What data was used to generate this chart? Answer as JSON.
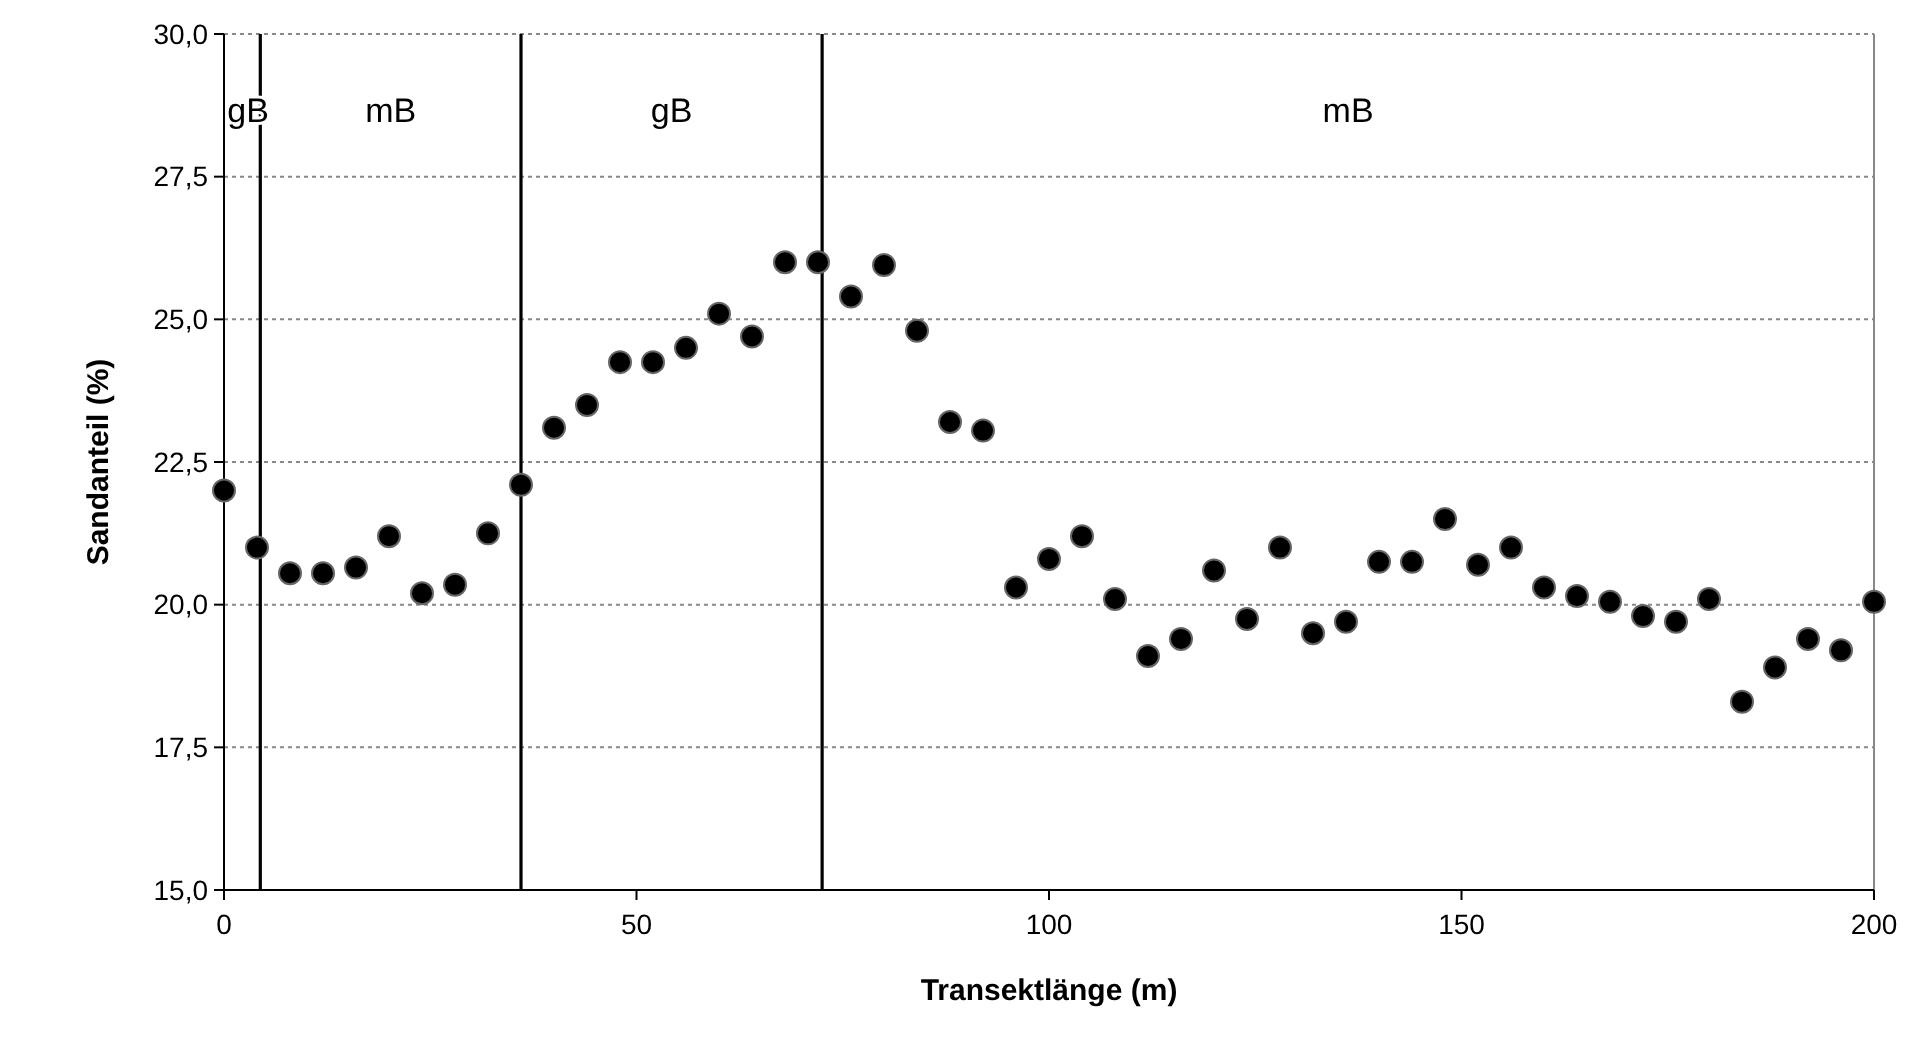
{
  "chart_data": {
    "type": "scatter",
    "xlabel": "Transektlänge (m)",
    "ylabel": "Sandanteil (%)",
    "x": [
      0,
      4,
      8,
      12,
      16,
      20,
      24,
      28,
      32,
      36,
      40,
      44,
      48,
      52,
      56,
      60,
      64,
      68,
      72,
      76,
      80,
      84,
      88,
      92,
      96,
      100,
      104,
      108,
      112,
      116,
      120,
      124,
      128,
      132,
      136,
      140,
      144,
      148,
      152,
      156,
      160,
      164,
      168,
      172,
      176,
      180,
      184,
      188,
      192,
      196,
      200
    ],
    "series": [
      {
        "color": "#000000",
        "values": [
          22.0,
          21.0,
          20.55,
          20.55,
          20.65,
          21.2,
          20.2,
          20.35,
          21.25,
          22.1,
          23.1,
          23.5,
          24.25,
          24.25,
          24.5,
          25.1,
          24.7,
          26.0,
          26.0,
          25.4,
          25.95,
          24.8,
          23.2,
          23.05,
          20.3,
          20.8,
          21.2,
          20.1,
          19.1,
          19.4,
          20.6,
          19.75,
          21.0,
          19.5,
          19.7,
          20.75,
          20.75,
          21.5,
          20.7,
          21.0,
          20.3,
          20.15,
          20.05,
          19.8,
          19.7,
          20.1,
          18.3,
          18.9,
          19.4,
          19.2,
          20.05
        ]
      }
    ],
    "xlim": [
      0,
      200
    ],
    "xticks": [
      0,
      50,
      100,
      150,
      200
    ],
    "ylim": [
      15,
      30
    ],
    "yticks": [
      {
        "value": 15,
        "label": "15,0"
      },
      {
        "value": 17.5,
        "label": "17,5"
      },
      {
        "value": 20,
        "label": "20,0"
      },
      {
        "value": 22.5,
        "label": "22,5"
      },
      {
        "value": 25,
        "label": "25,0"
      },
      {
        "value": 27.5,
        "label": "27,5"
      },
      {
        "value": 30,
        "label": "30,0"
      }
    ],
    "grid": "y",
    "marker": "circle",
    "ref_lines": [
      {
        "axis": "x",
        "value": 4.4,
        "color": "#000000"
      },
      {
        "axis": "x",
        "value": 36,
        "color": "#000000"
      },
      {
        "axis": "x",
        "value": 72.5,
        "color": "#000000"
      }
    ],
    "annotations": [
      "gB",
      "mB",
      "gB",
      "mB"
    ]
  }
}
